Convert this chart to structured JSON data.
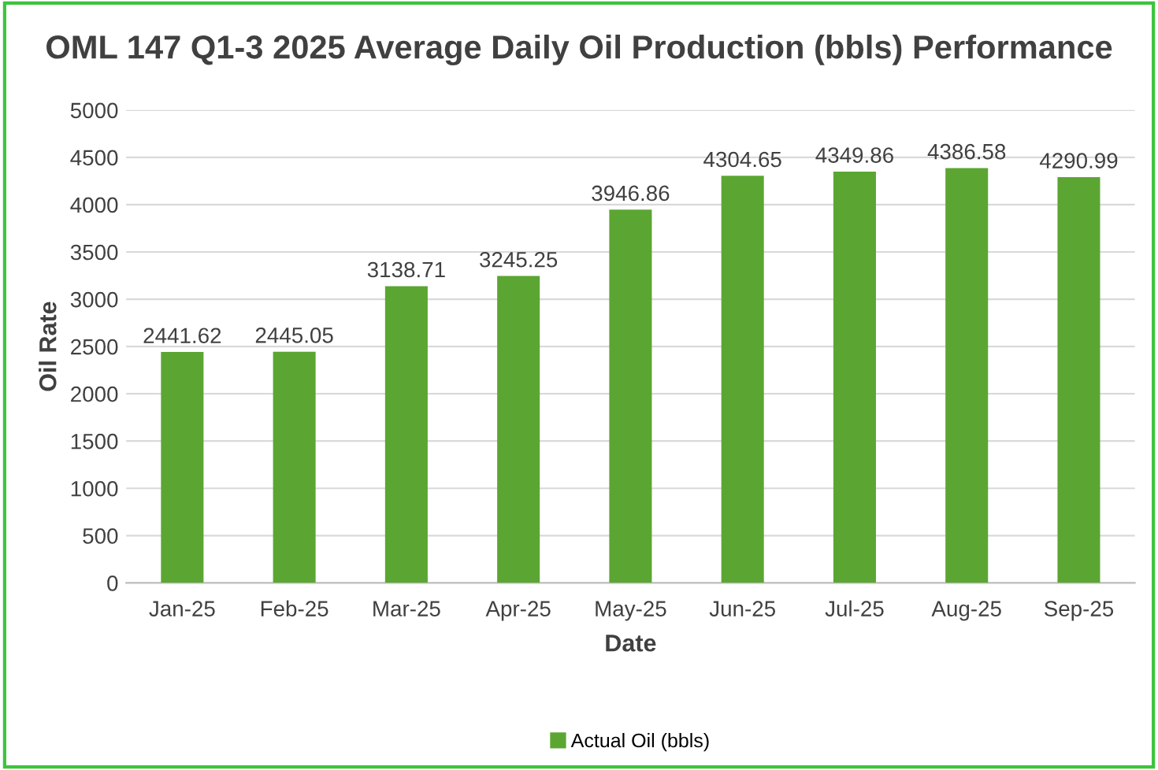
{
  "chart_data": {
    "type": "bar",
    "title": "OML 147 Q1-3 2025 Average Daily Oil Production (bbls) Performance",
    "xlabel": "Date",
    "ylabel": "Oil Rate",
    "categories": [
      "Jan-25",
      "Feb-25",
      "Mar-25",
      "Apr-25",
      "May-25",
      "Jun-25",
      "Jul-25",
      "Aug-25",
      "Sep-25"
    ],
    "series": [
      {
        "name": "Actual Oil (bbls)",
        "color": "#5ba632",
        "values": [
          2441.62,
          2445.05,
          3138.71,
          3245.25,
          3946.86,
          4304.65,
          4349.86,
          4386.58,
          4290.99
        ]
      }
    ],
    "data_labels": true,
    "ylim": [
      0,
      5000
    ],
    "yticks": [
      0,
      500,
      1000,
      1500,
      2000,
      2500,
      3000,
      3500,
      4000,
      4500,
      5000
    ],
    "grid": "y",
    "legend": "bottom"
  }
}
